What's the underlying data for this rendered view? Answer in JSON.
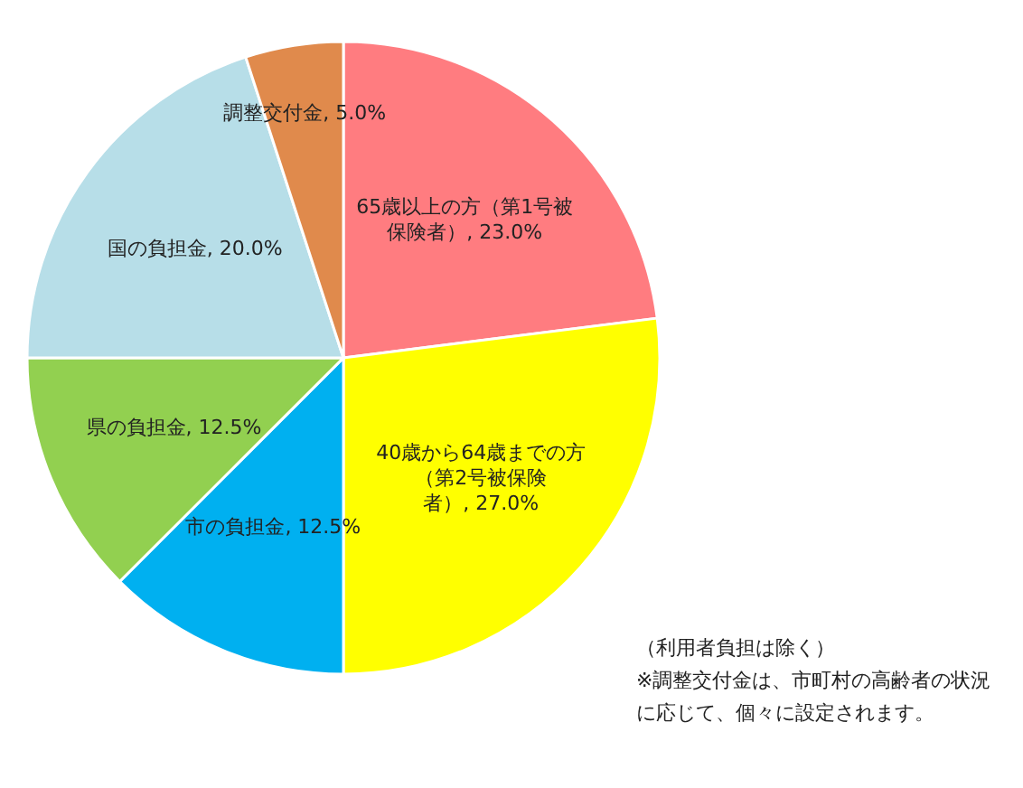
{
  "chart_data": {
    "type": "pie",
    "categories": [
      "65歳以上の方（第1号被保険者）",
      "40歳から64歳までの方（第2号被保険者）",
      "市の負担金",
      "県の負担金",
      "国の負担金",
      "調整交付金"
    ],
    "values": [
      23.0,
      27.0,
      12.5,
      12.5,
      20.0,
      5.0
    ],
    "colors": [
      "#ff7c80",
      "#ffff00",
      "#00b0f0",
      "#92d050",
      "#b7dee8",
      "#e08a4c"
    ],
    "value_labels": [
      "23.0%",
      "27.0%",
      "12.5%",
      "12.5%",
      "20.0%",
      "5.0%"
    ],
    "annotations": [
      "（利用者負担は除く）",
      "※調整交付金は、市町村の高齢者の状況に応じて、個々に設定されます。"
    ]
  }
}
